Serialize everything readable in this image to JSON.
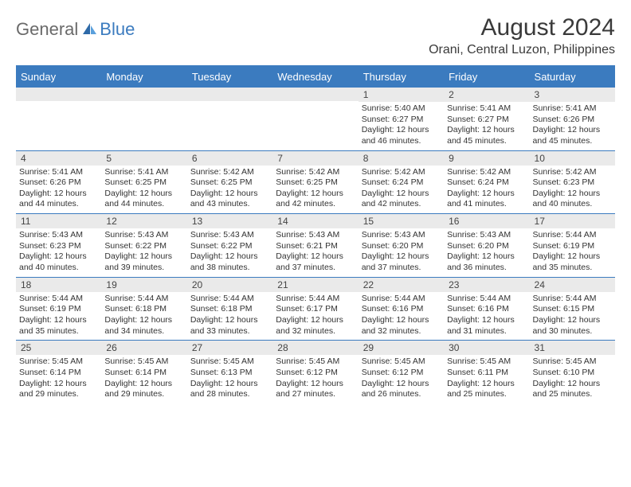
{
  "brand": {
    "text1": "General",
    "text2": "Blue"
  },
  "title": "August 2024",
  "location": "Orani, Central Luzon, Philippines",
  "colors": {
    "accent": "#3b7bbf",
    "header_text": "#ffffff",
    "daynum_bg": "#eaeaea",
    "text": "#333333",
    "logo_gray": "#6a6a6a"
  },
  "weekdays": [
    "Sunday",
    "Monday",
    "Tuesday",
    "Wednesday",
    "Thursday",
    "Friday",
    "Saturday"
  ],
  "weeks": [
    [
      null,
      null,
      null,
      null,
      {
        "n": "1",
        "sunrise": "Sunrise: 5:40 AM",
        "sunset": "Sunset: 6:27 PM",
        "day1": "Daylight: 12 hours",
        "day2": "and 46 minutes."
      },
      {
        "n": "2",
        "sunrise": "Sunrise: 5:41 AM",
        "sunset": "Sunset: 6:27 PM",
        "day1": "Daylight: 12 hours",
        "day2": "and 45 minutes."
      },
      {
        "n": "3",
        "sunrise": "Sunrise: 5:41 AM",
        "sunset": "Sunset: 6:26 PM",
        "day1": "Daylight: 12 hours",
        "day2": "and 45 minutes."
      }
    ],
    [
      {
        "n": "4",
        "sunrise": "Sunrise: 5:41 AM",
        "sunset": "Sunset: 6:26 PM",
        "day1": "Daylight: 12 hours",
        "day2": "and 44 minutes."
      },
      {
        "n": "5",
        "sunrise": "Sunrise: 5:41 AM",
        "sunset": "Sunset: 6:25 PM",
        "day1": "Daylight: 12 hours",
        "day2": "and 44 minutes."
      },
      {
        "n": "6",
        "sunrise": "Sunrise: 5:42 AM",
        "sunset": "Sunset: 6:25 PM",
        "day1": "Daylight: 12 hours",
        "day2": "and 43 minutes."
      },
      {
        "n": "7",
        "sunrise": "Sunrise: 5:42 AM",
        "sunset": "Sunset: 6:25 PM",
        "day1": "Daylight: 12 hours",
        "day2": "and 42 minutes."
      },
      {
        "n": "8",
        "sunrise": "Sunrise: 5:42 AM",
        "sunset": "Sunset: 6:24 PM",
        "day1": "Daylight: 12 hours",
        "day2": "and 42 minutes."
      },
      {
        "n": "9",
        "sunrise": "Sunrise: 5:42 AM",
        "sunset": "Sunset: 6:24 PM",
        "day1": "Daylight: 12 hours",
        "day2": "and 41 minutes."
      },
      {
        "n": "10",
        "sunrise": "Sunrise: 5:42 AM",
        "sunset": "Sunset: 6:23 PM",
        "day1": "Daylight: 12 hours",
        "day2": "and 40 minutes."
      }
    ],
    [
      {
        "n": "11",
        "sunrise": "Sunrise: 5:43 AM",
        "sunset": "Sunset: 6:23 PM",
        "day1": "Daylight: 12 hours",
        "day2": "and 40 minutes."
      },
      {
        "n": "12",
        "sunrise": "Sunrise: 5:43 AM",
        "sunset": "Sunset: 6:22 PM",
        "day1": "Daylight: 12 hours",
        "day2": "and 39 minutes."
      },
      {
        "n": "13",
        "sunrise": "Sunrise: 5:43 AM",
        "sunset": "Sunset: 6:22 PM",
        "day1": "Daylight: 12 hours",
        "day2": "and 38 minutes."
      },
      {
        "n": "14",
        "sunrise": "Sunrise: 5:43 AM",
        "sunset": "Sunset: 6:21 PM",
        "day1": "Daylight: 12 hours",
        "day2": "and 37 minutes."
      },
      {
        "n": "15",
        "sunrise": "Sunrise: 5:43 AM",
        "sunset": "Sunset: 6:20 PM",
        "day1": "Daylight: 12 hours",
        "day2": "and 37 minutes."
      },
      {
        "n": "16",
        "sunrise": "Sunrise: 5:43 AM",
        "sunset": "Sunset: 6:20 PM",
        "day1": "Daylight: 12 hours",
        "day2": "and 36 minutes."
      },
      {
        "n": "17",
        "sunrise": "Sunrise: 5:44 AM",
        "sunset": "Sunset: 6:19 PM",
        "day1": "Daylight: 12 hours",
        "day2": "and 35 minutes."
      }
    ],
    [
      {
        "n": "18",
        "sunrise": "Sunrise: 5:44 AM",
        "sunset": "Sunset: 6:19 PM",
        "day1": "Daylight: 12 hours",
        "day2": "and 35 minutes."
      },
      {
        "n": "19",
        "sunrise": "Sunrise: 5:44 AM",
        "sunset": "Sunset: 6:18 PM",
        "day1": "Daylight: 12 hours",
        "day2": "and 34 minutes."
      },
      {
        "n": "20",
        "sunrise": "Sunrise: 5:44 AM",
        "sunset": "Sunset: 6:18 PM",
        "day1": "Daylight: 12 hours",
        "day2": "and 33 minutes."
      },
      {
        "n": "21",
        "sunrise": "Sunrise: 5:44 AM",
        "sunset": "Sunset: 6:17 PM",
        "day1": "Daylight: 12 hours",
        "day2": "and 32 minutes."
      },
      {
        "n": "22",
        "sunrise": "Sunrise: 5:44 AM",
        "sunset": "Sunset: 6:16 PM",
        "day1": "Daylight: 12 hours",
        "day2": "and 32 minutes."
      },
      {
        "n": "23",
        "sunrise": "Sunrise: 5:44 AM",
        "sunset": "Sunset: 6:16 PM",
        "day1": "Daylight: 12 hours",
        "day2": "and 31 minutes."
      },
      {
        "n": "24",
        "sunrise": "Sunrise: 5:44 AM",
        "sunset": "Sunset: 6:15 PM",
        "day1": "Daylight: 12 hours",
        "day2": "and 30 minutes."
      }
    ],
    [
      {
        "n": "25",
        "sunrise": "Sunrise: 5:45 AM",
        "sunset": "Sunset: 6:14 PM",
        "day1": "Daylight: 12 hours",
        "day2": "and 29 minutes."
      },
      {
        "n": "26",
        "sunrise": "Sunrise: 5:45 AM",
        "sunset": "Sunset: 6:14 PM",
        "day1": "Daylight: 12 hours",
        "day2": "and 29 minutes."
      },
      {
        "n": "27",
        "sunrise": "Sunrise: 5:45 AM",
        "sunset": "Sunset: 6:13 PM",
        "day1": "Daylight: 12 hours",
        "day2": "and 28 minutes."
      },
      {
        "n": "28",
        "sunrise": "Sunrise: 5:45 AM",
        "sunset": "Sunset: 6:12 PM",
        "day1": "Daylight: 12 hours",
        "day2": "and 27 minutes."
      },
      {
        "n": "29",
        "sunrise": "Sunrise: 5:45 AM",
        "sunset": "Sunset: 6:12 PM",
        "day1": "Daylight: 12 hours",
        "day2": "and 26 minutes."
      },
      {
        "n": "30",
        "sunrise": "Sunrise: 5:45 AM",
        "sunset": "Sunset: 6:11 PM",
        "day1": "Daylight: 12 hours",
        "day2": "and 25 minutes."
      },
      {
        "n": "31",
        "sunrise": "Sunrise: 5:45 AM",
        "sunset": "Sunset: 6:10 PM",
        "day1": "Daylight: 12 hours",
        "day2": "and 25 minutes."
      }
    ]
  ]
}
